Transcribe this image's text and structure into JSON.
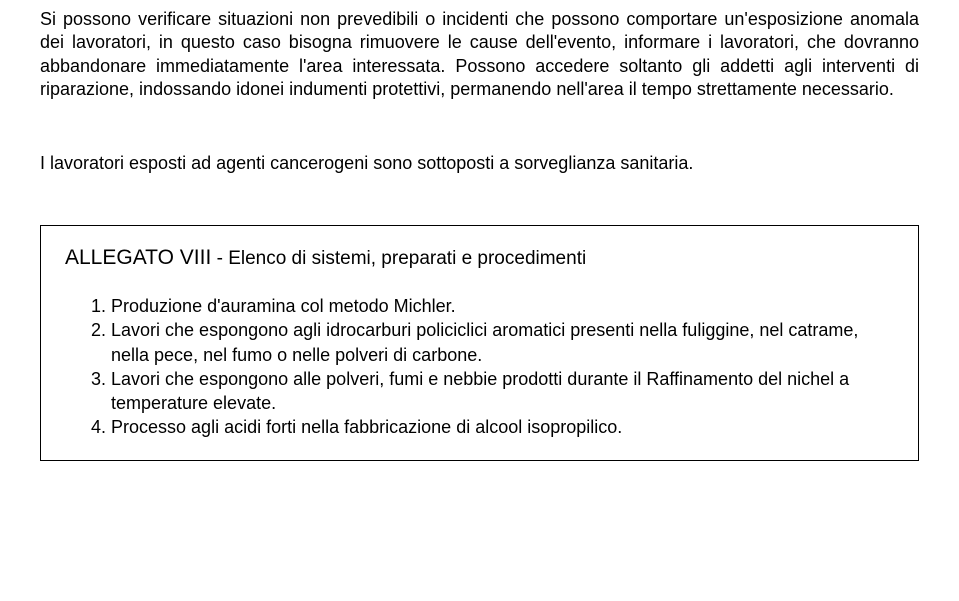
{
  "paragraph1": "Si possono verificare situazioni non prevedibili o incidenti che possono comportare un'esposizione anomala dei lavoratori, in questo caso bisogna rimuovere le cause dell'evento, informare i lavoratori, che dovranno abbandonare immediatamente l'area interessata. Possono accedere soltanto gli addetti agli interventi di riparazione, indossando idonei indumenti protettivi, permanendo nell'area il tempo strettamente necessario.",
  "paragraph2": "I lavoratori esposti ad agenti cancerogeni sono sottoposti a sorveglianza sanitaria.",
  "allegato": {
    "titlePrefix": "ALLEGATO  VIII",
    "titleSeparator": " -  ",
    "titleSuffix": "Elenco di sistemi, preparati e procedimenti",
    "items": [
      "1.  Produzione d'auramina col  metodo  Michler.",
      "2.  Lavori che espongono agli idrocarburi policiclici aromatici presenti nella fuliggine, nel catrame, nella pece, nel fumo o nelle polveri di carbone.",
      "3.  Lavori che espongono alle polveri, fumi e nebbie prodotti durante il Raffinamento del nichel a temperature elevate.",
      "4.  Processo agli acidi forti nella fabbricazione di alcool isopropilico."
    ]
  }
}
